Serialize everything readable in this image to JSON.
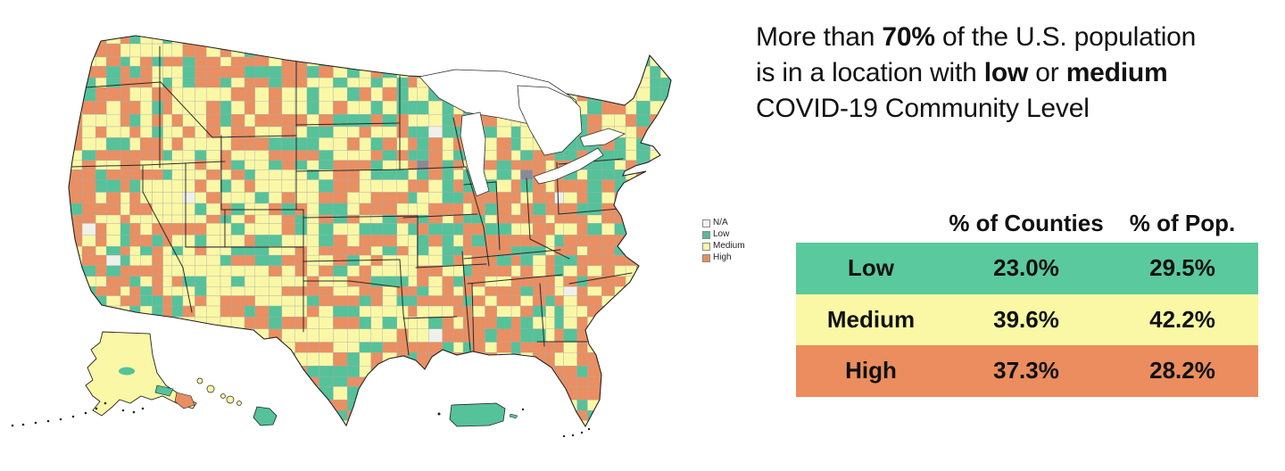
{
  "headline": {
    "lines": [
      [
        {
          "t": "More than ",
          "b": 0
        },
        {
          "t": "70%",
          "b": 1
        },
        {
          "t": " of the U.S. population",
          "b": 0
        }
      ],
      [
        {
          "t": "is in a location with ",
          "b": 0
        },
        {
          "t": "low",
          "b": 1
        },
        {
          "t": " or ",
          "b": 0
        },
        {
          "t": "medium",
          "b": 1
        }
      ],
      [
        {
          "t": "COVID-19 Community Level",
          "b": 0
        }
      ]
    ]
  },
  "legend": {
    "items": [
      {
        "label": "N/A",
        "color": "#F2F2EE"
      },
      {
        "label": "Low",
        "color": "#52BD97"
      },
      {
        "label": "Medium",
        "color": "#FAF8A5"
      },
      {
        "label": "High",
        "color": "#EA8D5F"
      }
    ]
  },
  "map": {
    "colors": {
      "low": "#55C29A",
      "medium": "#FAF8A6",
      "high": "#E98F62",
      "na": "#F0F0EB",
      "na_dark": "#8a8a95"
    },
    "distribution_pct": {
      "low": 23.0,
      "medium": 39.6,
      "high": 37.3
    }
  },
  "table": {
    "columns": [
      "",
      "% of Counties",
      "% of Pop."
    ],
    "rows": [
      {
        "label": "Low",
        "counties": "23.0%",
        "pop": "29.5%",
        "color": "#5BC99E"
      },
      {
        "label": "Medium",
        "counties": "39.6%",
        "pop": "42.2%",
        "color": "#FAF8A5"
      },
      {
        "label": "High",
        "counties": "37.3%",
        "pop": "28.2%",
        "color": "#EB8D5E"
      }
    ]
  },
  "chart_data": {
    "type": "table",
    "title": "More than 70% of the U.S. population is in a location with low or medium COVID-19 Community Level",
    "map_legend": [
      "N/A",
      "Low",
      "Medium",
      "High"
    ],
    "categories": [
      "Low",
      "Medium",
      "High"
    ],
    "series": [
      {
        "name": "% of Counties",
        "values": [
          23.0,
          39.6,
          37.3
        ]
      },
      {
        "name": "% of Pop.",
        "values": [
          29.5,
          42.2,
          28.2
        ]
      }
    ]
  }
}
